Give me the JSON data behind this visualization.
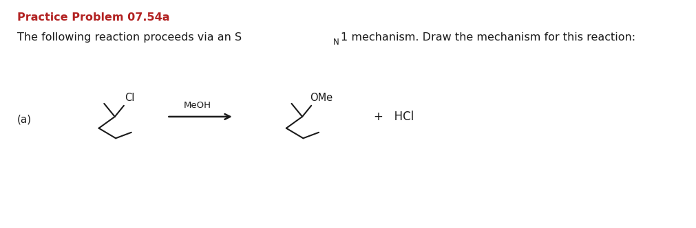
{
  "title": "Practice Problem 07.54a",
  "title_color": "#b22222",
  "body_text1": "The following reaction proceeds via an S",
  "body_sub": "N",
  "body_text2": "1 mechanism. Draw the mechanism for this reaction:",
  "label_a": "(a)",
  "reactant_cl": "Cl",
  "reagent": "MeOH",
  "product_ome": "OMe",
  "product_hcl": "+   HCl",
  "bg_color": "#ffffff",
  "text_color": "#1a1a1a",
  "line_color": "#1a1a1a",
  "figsize": [
    10.11,
    3.32
  ],
  "dpi": 100
}
